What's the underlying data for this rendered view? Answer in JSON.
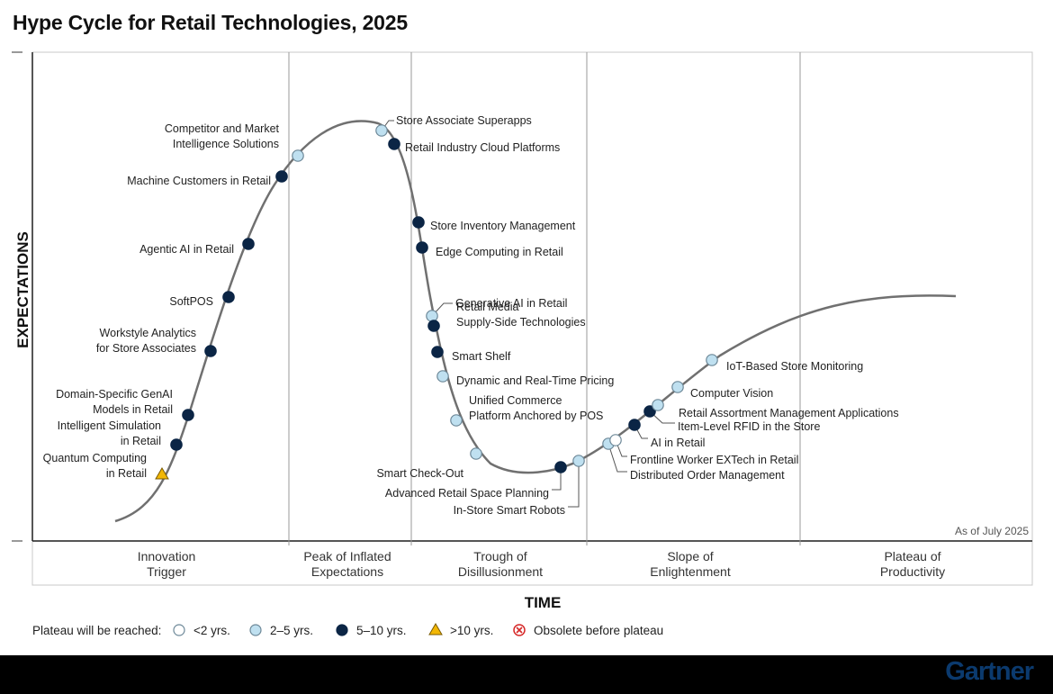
{
  "title": "Hype Cycle for Retail Technologies, 2025",
  "brand": "Gartner",
  "as_of": "As of July 2025",
  "axis": {
    "x": "TIME",
    "y": "EXPECTATIONS"
  },
  "phases": [
    {
      "id": "innovation",
      "lines": [
        "Innovation",
        "Trigger"
      ]
    },
    {
      "id": "peak",
      "lines": [
        "Peak of Inflated",
        "Expectations"
      ]
    },
    {
      "id": "trough",
      "lines": [
        "Trough of",
        "Disillusionment"
      ]
    },
    {
      "id": "slope",
      "lines": [
        "Slope of",
        "Enlightenment"
      ]
    },
    {
      "id": "plateau",
      "lines": [
        "Plateau of",
        "Productivity"
      ]
    }
  ],
  "legend": {
    "prefix": "Plateau will be reached:",
    "items": [
      {
        "key": "lt2",
        "label": "<2 yrs.",
        "color": "#ffffff"
      },
      {
        "key": "2to5",
        "label": "2–5 yrs.",
        "color": "#bfe0f0"
      },
      {
        "key": "5to10",
        "label": "5–10 yrs.",
        "color": "#0b2545"
      },
      {
        "key": "gt10",
        "label": ">10 yrs.",
        "color": "#f2b705"
      },
      {
        "key": "obsolete",
        "label": "Obsolete before plateau",
        "color": "#d62828"
      }
    ]
  },
  "chart_data": {
    "type": "scatter",
    "title": "Hype Cycle for Retail Technologies, 2025",
    "xlabel": "TIME",
    "ylabel": "EXPECTATIONS",
    "legend_placement": "bottom",
    "technologies": [
      {
        "name": "Quantum Computing in Retail",
        "lines": [
          "Quantum Computing",
          "in Retail"
        ],
        "cat": "gt10"
      },
      {
        "name": "Intelligent Simulation in Retail",
        "lines": [
          "Intelligent Simulation",
          "in Retail"
        ],
        "cat": "5to10"
      },
      {
        "name": "Domain-Specific GenAI Models in Retail",
        "lines": [
          "Domain-Specific GenAI",
          "Models in Retail"
        ],
        "cat": "5to10"
      },
      {
        "name": "Workstyle Analytics for Store Associates",
        "lines": [
          "Workstyle Analytics",
          "for Store Associates"
        ],
        "cat": "5to10"
      },
      {
        "name": "SoftPOS",
        "lines": [
          "SoftPOS"
        ],
        "cat": "5to10"
      },
      {
        "name": "Agentic AI in Retail",
        "lines": [
          "Agentic AI in Retail"
        ],
        "cat": "5to10"
      },
      {
        "name": "Machine Customers in Retail",
        "lines": [
          "Machine Customers in Retail"
        ],
        "cat": "5to10"
      },
      {
        "name": "Competitor and Market Intelligence Solutions",
        "lines": [
          "Competitor and Market",
          "Intelligence Solutions"
        ],
        "cat": "2to5"
      },
      {
        "name": "Store Associate Superapps",
        "lines": [
          "Store Associate Superapps"
        ],
        "cat": "2to5"
      },
      {
        "name": "Retail Industry Cloud Platforms",
        "lines": [
          "Retail Industry Cloud Platforms"
        ],
        "cat": "5to10"
      },
      {
        "name": "Store Inventory Management",
        "lines": [
          "Store Inventory Management"
        ],
        "cat": "5to10"
      },
      {
        "name": "Edge Computing in Retail",
        "lines": [
          "Edge Computing in Retail"
        ],
        "cat": "5to10"
      },
      {
        "name": "Generative AI in Retail",
        "lines": [
          "Generative AI in Retail"
        ],
        "cat": "2to5"
      },
      {
        "name": "Retail Media Supply-Side Technologies",
        "lines": [
          "Retail Media",
          "Supply-Side Technologies"
        ],
        "cat": "5to10"
      },
      {
        "name": "Smart Shelf",
        "lines": [
          "Smart Shelf"
        ],
        "cat": "5to10"
      },
      {
        "name": "Dynamic and Real-Time Pricing",
        "lines": [
          "Dynamic and Real-Time Pricing"
        ],
        "cat": "2to5"
      },
      {
        "name": "Unified Commerce Platform Anchored by POS",
        "lines": [
          "Unified Commerce",
          "Platform Anchored by POS"
        ],
        "cat": "2to5"
      },
      {
        "name": "Smart Check-Out",
        "lines": [
          "Smart Check-Out"
        ],
        "cat": "2to5"
      },
      {
        "name": "Advanced Retail Space Planning",
        "lines": [
          "Advanced Retail Space Planning"
        ],
        "cat": "5to10"
      },
      {
        "name": "In-Store Smart Robots",
        "lines": [
          "In-Store Smart Robots"
        ],
        "cat": "2to5"
      },
      {
        "name": "Distributed Order Management",
        "lines": [
          "Distributed Order Management"
        ],
        "cat": "2to5"
      },
      {
        "name": "Frontline Worker EXTech in Retail",
        "lines": [
          "Frontline Worker EXTech in Retail"
        ],
        "cat": "lt2"
      },
      {
        "name": "AI in Retail",
        "lines": [
          "AI in Retail"
        ],
        "cat": "5to10"
      },
      {
        "name": "Item-Level RFID in the Store",
        "lines": [
          "Item-Level RFID in the Store"
        ],
        "cat": "5to10"
      },
      {
        "name": "Retail Assortment Management Applications",
        "lines": [
          "Retail Assortment Management Applications"
        ],
        "cat": "2to5"
      },
      {
        "name": "Computer Vision",
        "lines": [
          "Computer Vision"
        ],
        "cat": "2to5"
      },
      {
        "name": "IoT-Based Store Monitoring",
        "lines": [
          "IoT-Based Store Monitoring"
        ],
        "cat": "2to5"
      }
    ]
  }
}
